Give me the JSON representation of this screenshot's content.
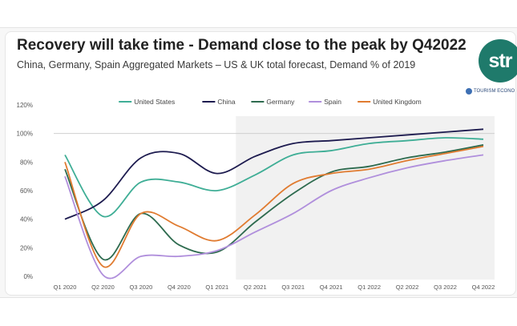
{
  "title": "Recovery will take time - Demand close to the peak by Q42022",
  "subtitle": "China, Germany, Spain Aggregated Markets – US & UK total forecast, Demand % of 2019",
  "logo": {
    "brand_text": "str",
    "partner_text": "TOURISM ECONO",
    "brand_color": "#1f7a6b",
    "partner_icon": "globe-icon"
  },
  "chart_data": {
    "type": "line",
    "title": "Recovery will take time - Demand close to the peak by Q42022",
    "subtitle": "China, Germany, Spain Aggregated Markets – US & UK total forecast, Demand % of 2019",
    "xlabel": "",
    "ylabel": "",
    "categories": [
      "Q1 2020",
      "Q2 2020",
      "Q3 2020",
      "Q4 2020",
      "Q1 2021",
      "Q2 2021",
      "Q3 2021",
      "Q4 2021",
      "Q1 2022",
      "Q2 2022",
      "Q3 2022",
      "Q4 2022"
    ],
    "y_ticks": [
      "0%",
      "20%",
      "40%",
      "60%",
      "80%",
      "100%",
      "120%"
    ],
    "ylim": [
      0,
      120
    ],
    "reference_line": 100,
    "grid": false,
    "legend_position": "top",
    "series": [
      {
        "name": "United States",
        "color": "#3fae96",
        "values": [
          85,
          42,
          66,
          66,
          60,
          71,
          85,
          88,
          93,
          95,
          97,
          96
        ]
      },
      {
        "name": "China",
        "color": "#1d1b4f",
        "values": [
          40,
          53,
          83,
          86,
          72,
          84,
          93,
          95,
          97,
          99,
          101,
          103
        ]
      },
      {
        "name": "Germany",
        "color": "#2e6b4f",
        "values": [
          75,
          12,
          44,
          22,
          17,
          38,
          58,
          73,
          77,
          83,
          87,
          92
        ]
      },
      {
        "name": "Spain",
        "color": "#b08fdc",
        "values": [
          70,
          1,
          14,
          14,
          18,
          31,
          44,
          60,
          69,
          76,
          81,
          85
        ]
      },
      {
        "name": "United Kingdom",
        "color": "#e07b30",
        "values": [
          80,
          7,
          44,
          35,
          25,
          43,
          65,
          72,
          75,
          81,
          86,
          91
        ]
      }
    ]
  }
}
